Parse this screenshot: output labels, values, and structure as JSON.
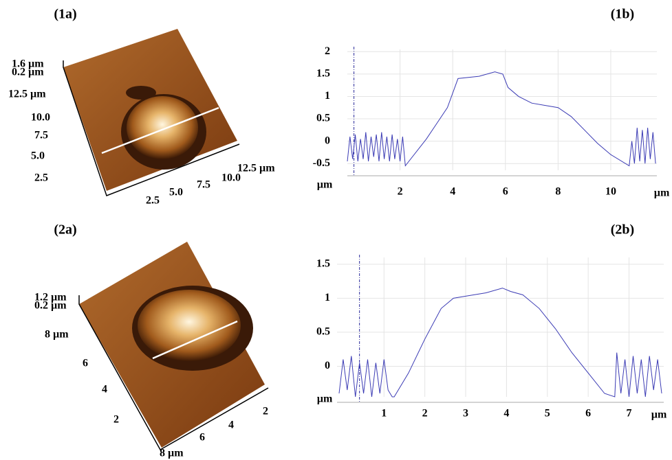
{
  "chart_data": [
    {
      "type": "line",
      "title": "(1b)",
      "y_label": "µm",
      "x_label": "µm",
      "xlim": [
        0,
        11.75
      ],
      "ylim": [
        -0.65,
        2.05
      ],
      "xticks": [
        2,
        4,
        6,
        8,
        10
      ],
      "yticks": [
        -0.5,
        0,
        0.5,
        1,
        1.5,
        2
      ],
      "grid": true,
      "cursor_x": 0.25,
      "series": [
        {
          "color": "#3a3ab4",
          "x": [
            0,
            0.1,
            0.2,
            0.3,
            0.4,
            0.5,
            0.6,
            0.7,
            0.8,
            0.9,
            1,
            1.1,
            1.2,
            1.3,
            1.4,
            1.5,
            1.6,
            1.7,
            1.8,
            1.9,
            2,
            2.1,
            2.2,
            3,
            3.8,
            4.2,
            5,
            5.6,
            5.9,
            6.1,
            6.5,
            7,
            7.5,
            8,
            8.5,
            9,
            9.5,
            10,
            10.7,
            10.8,
            10.9,
            11,
            11.1,
            11.2,
            11.3,
            11.4,
            11.5,
            11.6,
            11.7
          ],
          "values": [
            -0.45,
            0.1,
            -0.4,
            0.15,
            -0.45,
            0.05,
            -0.4,
            0.2,
            -0.45,
            0.1,
            -0.35,
            0.15,
            -0.45,
            0.2,
            -0.4,
            0.1,
            -0.45,
            0.15,
            -0.4,
            0.05,
            -0.45,
            0.1,
            -0.55,
            0.05,
            0.75,
            1.4,
            1.45,
            1.55,
            1.5,
            1.2,
            1.0,
            0.85,
            0.8,
            0.75,
            0.55,
            0.25,
            -0.05,
            -0.3,
            -0.55,
            0.0,
            -0.5,
            0.3,
            -0.45,
            0.25,
            -0.5,
            0.3,
            -0.4,
            0.2,
            -0.5
          ]
        }
      ]
    },
    {
      "type": "line",
      "title": "(2b)",
      "y_label": "µm",
      "x_label": "µm",
      "xlim": [
        -0.15,
        7.85
      ],
      "ylim": [
        -0.45,
        1.6
      ],
      "xticks": [
        1,
        2,
        3,
        4,
        5,
        6,
        7
      ],
      "yticks": [
        0,
        0.5,
        1,
        1.5
      ],
      "grid": true,
      "cursor_x": 0.4,
      "series": [
        {
          "color": "#3a3ab4",
          "x": [
            -0.1,
            0,
            0.1,
            0.2,
            0.3,
            0.4,
            0.5,
            0.6,
            0.7,
            0.8,
            0.9,
            1,
            1.1,
            1.2,
            1.25,
            1.6,
            2,
            2.4,
            2.7,
            3,
            3.5,
            3.9,
            4.1,
            4.4,
            4.8,
            5.2,
            5.6,
            6,
            6.4,
            6.65,
            6.7,
            6.8,
            6.9,
            7,
            7.1,
            7.2,
            7.3,
            7.4,
            7.5,
            7.6,
            7.7,
            7.8
          ],
          "values": [
            -0.4,
            0.1,
            -0.35,
            0.15,
            -0.45,
            0.05,
            -0.4,
            0.1,
            -0.45,
            0.05,
            -0.4,
            0.1,
            -0.35,
            -0.45,
            -0.45,
            -0.1,
            0.4,
            0.85,
            1.0,
            1.03,
            1.08,
            1.15,
            1.1,
            1.05,
            0.85,
            0.55,
            0.2,
            -0.1,
            -0.4,
            -0.45,
            0.2,
            -0.4,
            0.1,
            -0.45,
            0.15,
            -0.4,
            0.1,
            -0.45,
            0.15,
            -0.35,
            0.1,
            -0.4
          ]
        }
      ]
    }
  ],
  "afm_images": [
    {
      "label": "(1a)",
      "z_labels": [
        "1.6 µm",
        "0.2 µm"
      ],
      "y_labels": [
        "12.5 µm",
        "10.0",
        "7.5",
        "5.0",
        "2.5"
      ],
      "x_labels": [
        "2.5",
        "5.0",
        "7.5",
        "10.0",
        "12.5 µm"
      ]
    },
    {
      "label": "(2a)",
      "z_labels": [
        "1.2 µm",
        "0.2 µm"
      ],
      "y_labels": [
        "8 µm",
        "6",
        "4",
        "2"
      ],
      "x_labels": [
        "8 µm",
        "6",
        "4",
        "2"
      ]
    }
  ]
}
